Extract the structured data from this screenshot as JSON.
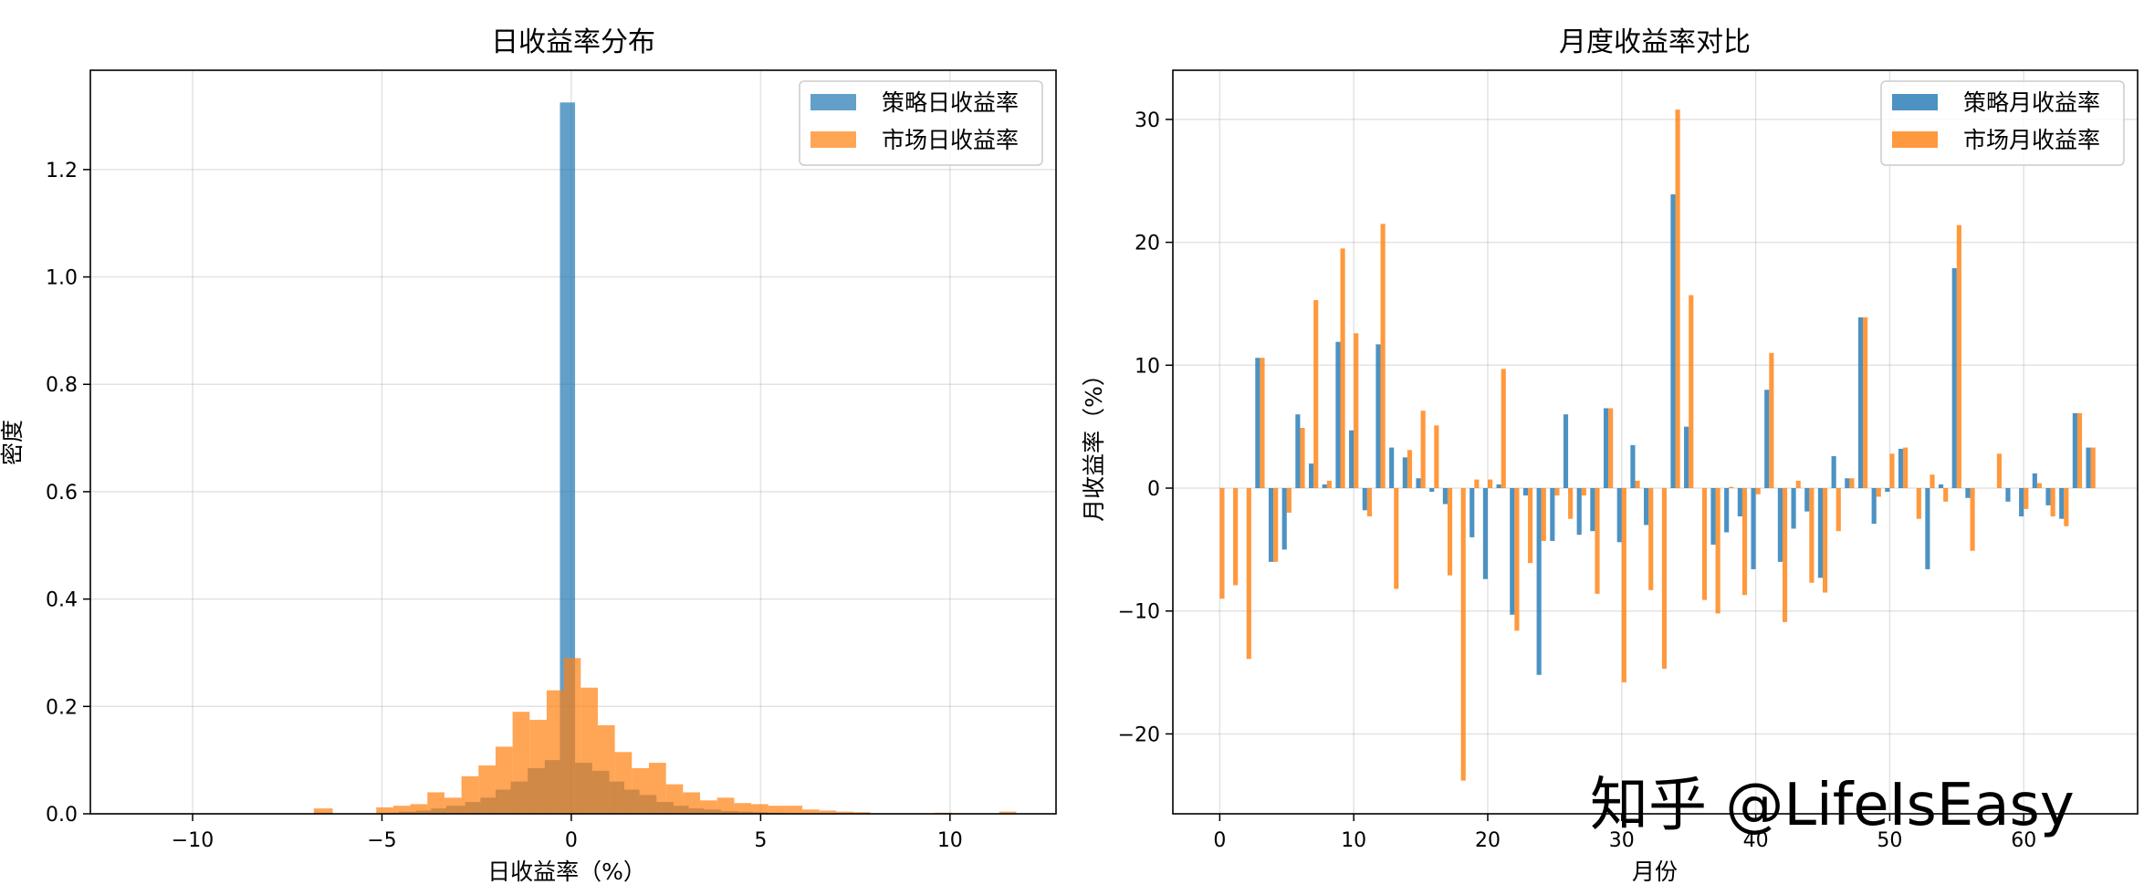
{
  "watermark": "知乎 @LifeIsEasy",
  "colors": {
    "strategy": "#1f77b4",
    "market": "#ff7f0e"
  },
  "chart_data": [
    {
      "type": "histogram",
      "title": "日收益率分布",
      "xlabel": "日收益率（%）",
      "ylabel": "密度",
      "xlim": [
        -12.7,
        12.8
      ],
      "ylim": [
        0,
        1.385
      ],
      "xticks": [
        -10,
        -5,
        0,
        5,
        10
      ],
      "xtick_labels": [
        "−10",
        "−5",
        "0",
        "5",
        "10"
      ],
      "yticks": [
        0.0,
        0.2,
        0.4,
        0.6,
        0.8,
        1.0,
        1.2
      ],
      "ytick_labels": [
        "0.0",
        "0.2",
        "0.4",
        "0.6",
        "0.8",
        "1.0",
        "1.2"
      ],
      "grid": true,
      "legend_position": "top-right",
      "series": [
        {
          "name": "策略日收益率",
          "color": "#1f77b4",
          "alpha": 0.7,
          "bins": [
            {
              "x0": -6.8,
              "x1": -6.3,
              "density": 0.002
            },
            {
              "x0": -4.95,
              "x1": -4.55,
              "density": 0.002
            },
            {
              "x0": -4.55,
              "x1": -4.1,
              "density": 0.004
            },
            {
              "x0": -4.1,
              "x1": -3.7,
              "density": 0.006
            },
            {
              "x0": -3.7,
              "x1": -3.3,
              "density": 0.01
            },
            {
              "x0": -3.3,
              "x1": -2.8,
              "density": 0.015
            },
            {
              "x0": -2.8,
              "x1": -2.4,
              "density": 0.022
            },
            {
              "x0": -2.4,
              "x1": -2.0,
              "density": 0.03
            },
            {
              "x0": -2.0,
              "x1": -1.6,
              "density": 0.045
            },
            {
              "x0": -1.6,
              "x1": -1.15,
              "density": 0.06
            },
            {
              "x0": -1.15,
              "x1": -0.7,
              "density": 0.085
            },
            {
              "x0": -0.7,
              "x1": -0.3,
              "density": 0.1
            },
            {
              "x0": -0.3,
              "x1": 0.1,
              "density": 1.325
            },
            {
              "x0": 0.1,
              "x1": 0.55,
              "density": 0.095
            },
            {
              "x0": 0.55,
              "x1": 1.0,
              "density": 0.08
            },
            {
              "x0": 1.0,
              "x1": 1.4,
              "density": 0.06
            },
            {
              "x0": 1.4,
              "x1": 1.8,
              "density": 0.045
            },
            {
              "x0": 1.8,
              "x1": 2.25,
              "density": 0.035
            },
            {
              "x0": 2.25,
              "x1": 2.7,
              "density": 0.022
            },
            {
              "x0": 2.7,
              "x1": 3.1,
              "density": 0.015
            },
            {
              "x0": 3.1,
              "x1": 3.5,
              "density": 0.01
            },
            {
              "x0": 3.5,
              "x1": 3.95,
              "density": 0.008
            },
            {
              "x0": 3.95,
              "x1": 4.4,
              "density": 0.005
            },
            {
              "x0": 4.4,
              "x1": 4.8,
              "density": 0.004
            },
            {
              "x0": 4.8,
              "x1": 5.2,
              "density": 0.003
            },
            {
              "x0": 5.2,
              "x1": 5.65,
              "density": 0.002
            }
          ]
        },
        {
          "name": "市场日收益率",
          "color": "#ff7f0e",
          "alpha": 0.7,
          "bins": [
            {
              "x0": -6.8,
              "x1": -6.3,
              "density": 0.01
            },
            {
              "x0": -5.15,
              "x1": -4.7,
              "density": 0.012
            },
            {
              "x0": -4.7,
              "x1": -4.25,
              "density": 0.015
            },
            {
              "x0": -4.25,
              "x1": -3.8,
              "density": 0.018
            },
            {
              "x0": -3.8,
              "x1": -3.35,
              "density": 0.04
            },
            {
              "x0": -3.35,
              "x1": -2.9,
              "density": 0.03
            },
            {
              "x0": -2.9,
              "x1": -2.45,
              "density": 0.07
            },
            {
              "x0": -2.45,
              "x1": -2.0,
              "density": 0.09
            },
            {
              "x0": -2.0,
              "x1": -1.55,
              "density": 0.125
            },
            {
              "x0": -1.55,
              "x1": -1.1,
              "density": 0.19
            },
            {
              "x0": -1.1,
              "x1": -0.65,
              "density": 0.175
            },
            {
              "x0": -0.65,
              "x1": -0.2,
              "density": 0.23
            },
            {
              "x0": -0.2,
              "x1": 0.25,
              "density": 0.29
            },
            {
              "x0": 0.25,
              "x1": 0.7,
              "density": 0.235
            },
            {
              "x0": 0.7,
              "x1": 1.15,
              "density": 0.165
            },
            {
              "x0": 1.15,
              "x1": 1.6,
              "density": 0.115
            },
            {
              "x0": 1.6,
              "x1": 2.05,
              "density": 0.085
            },
            {
              "x0": 2.05,
              "x1": 2.5,
              "density": 0.095
            },
            {
              "x0": 2.5,
              "x1": 2.95,
              "density": 0.055
            },
            {
              "x0": 2.95,
              "x1": 3.4,
              "density": 0.04
            },
            {
              "x0": 3.4,
              "x1": 3.85,
              "density": 0.025
            },
            {
              "x0": 3.85,
              "x1": 4.3,
              "density": 0.03
            },
            {
              "x0": 4.3,
              "x1": 4.75,
              "density": 0.02
            },
            {
              "x0": 4.75,
              "x1": 5.2,
              "density": 0.018
            },
            {
              "x0": 5.2,
              "x1": 5.65,
              "density": 0.015
            },
            {
              "x0": 5.65,
              "x1": 6.1,
              "density": 0.015
            },
            {
              "x0": 6.1,
              "x1": 6.55,
              "density": 0.008
            },
            {
              "x0": 6.55,
              "x1": 7.0,
              "density": 0.006
            },
            {
              "x0": 7.0,
              "x1": 7.45,
              "density": 0.004
            },
            {
              "x0": 7.45,
              "x1": 7.9,
              "density": 0.003
            },
            {
              "x0": 9.6,
              "x1": 10.05,
              "density": 0.002
            },
            {
              "x0": 11.3,
              "x1": 11.75,
              "density": 0.004
            }
          ]
        }
      ]
    },
    {
      "type": "bar",
      "title": "月度收益率对比",
      "xlabel": "月份",
      "ylabel": "月收益率（%）",
      "xlim": [
        -3.5,
        68.5
      ],
      "ylim": [
        -26.5,
        34.0
      ],
      "xticks": [
        0,
        10,
        20,
        30,
        40,
        50,
        60
      ],
      "xtick_labels": [
        "0",
        "10",
        "20",
        "30",
        "40",
        "50",
        "60"
      ],
      "yticks": [
        -20,
        -10,
        0,
        10,
        20,
        30
      ],
      "ytick_labels": [
        "−20",
        "−10",
        "0",
        "10",
        "20",
        "30"
      ],
      "grid": true,
      "legend_position": "top-right",
      "bar_width": 0.35,
      "x": [
        0,
        1,
        2,
        3,
        4,
        5,
        6,
        7,
        8,
        9,
        10,
        11,
        12,
        13,
        14,
        15,
        16,
        17,
        18,
        19,
        20,
        21,
        22,
        23,
        24,
        25,
        26,
        27,
        28,
        29,
        30,
        31,
        32,
        33,
        34,
        35,
        36,
        37,
        38,
        39,
        40,
        41,
        42,
        43,
        44,
        45,
        46,
        47,
        48,
        49,
        50,
        51,
        52,
        53,
        54,
        55,
        56,
        57,
        58,
        59,
        60,
        61,
        62,
        63,
        64,
        65
      ],
      "series": [
        {
          "name": "策略月收益率",
          "color": "#1f77b4",
          "alpha": 0.8,
          "values": [
            0,
            0,
            0,
            10.6,
            -6.0,
            -5.0,
            6.0,
            2.0,
            0.3,
            11.9,
            4.7,
            -1.8,
            11.7,
            3.3,
            2.5,
            0.8,
            -0.3,
            -1.3,
            0,
            -4.0,
            -7.4,
            0.3,
            -10.3,
            -0.6,
            -15.2,
            -4.3,
            6.0,
            -3.8,
            -3.5,
            6.5,
            -4.4,
            3.5,
            -3.0,
            0,
            23.9,
            5.0,
            0,
            -4.6,
            -3.6,
            -2.3,
            -6.6,
            8.0,
            -6.0,
            -3.3,
            -1.9,
            -7.3,
            2.6,
            0.8,
            13.9,
            -2.9,
            -0.3,
            3.2,
            0,
            -6.6,
            0.3,
            17.9,
            -0.8,
            0,
            0,
            -1.1,
            -2.3,
            1.2,
            -1.4,
            -2.5,
            6.1,
            3.3
          ]
        },
        {
          "name": "市场月收益率",
          "color": "#ff7f0e",
          "alpha": 0.8,
          "values": [
            -9.0,
            -7.9,
            -13.9,
            10.6,
            -6.0,
            -2.0,
            4.9,
            15.3,
            0.6,
            19.5,
            12.6,
            -2.3,
            21.5,
            -8.2,
            3.1,
            6.3,
            5.1,
            -7.1,
            -23.8,
            0.7,
            0.7,
            9.7,
            -11.6,
            -6.1,
            -4.3,
            -0.6,
            -2.5,
            -0.6,
            -8.6,
            6.5,
            -15.8,
            0.6,
            -8.3,
            -14.7,
            30.8,
            15.7,
            -9.1,
            -10.2,
            0.1,
            -8.7,
            -0.5,
            11.0,
            -10.9,
            0.6,
            -7.7,
            -8.5,
            -3.5,
            0.8,
            13.9,
            -0.7,
            2.8,
            3.3,
            -2.5,
            1.1,
            -1.1,
            21.4,
            -5.1,
            0,
            2.8,
            0,
            -1.7,
            0.4,
            -2.3,
            -3.1,
            6.1,
            3.3
          ]
        }
      ]
    }
  ]
}
